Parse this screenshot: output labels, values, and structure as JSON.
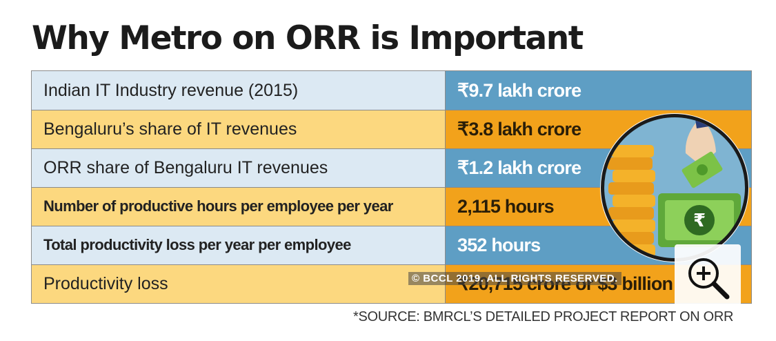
{
  "title": "Why Metro on ORR is Important",
  "rows": [
    {
      "label": "Indian IT Industry revenue (2015)",
      "value": "₹9.7 lakh crore"
    },
    {
      "label": "Bengaluru’s share of IT revenues",
      "value": "₹3.8 lakh crore"
    },
    {
      "label": "ORR share of Bengaluru IT revenues",
      "value": "₹1.2 lakh crore"
    },
    {
      "label": "Number of productive hours per employee per year",
      "value": "2,115 hours"
    },
    {
      "label": "Total productivity loss per year per employee",
      "value": "352 hours"
    },
    {
      "label": "Productivity loss",
      "value": "₹20,715 crore or $3 billion"
    }
  ],
  "illustration": {
    "currency_symbol": "₹",
    "icon": "coins-and-money-icon"
  },
  "watermark": "© BCCL 2019. ALL RIGHTS RESERVED.",
  "zoom": {
    "icon": "zoom-in-icon"
  },
  "source": "*SOURCE: BMRCL’S DETAILED PROJECT REPORT ON ORR",
  "colors": {
    "row_light_left": "#dce9f3",
    "row_light_right": "#5e9ec4",
    "row_yellow_left": "#fcd87f",
    "row_yellow_right": "#f2a21b"
  }
}
